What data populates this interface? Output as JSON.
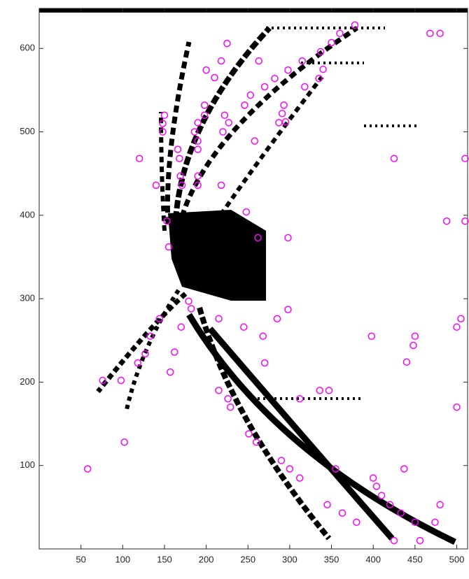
{
  "chart_data": {
    "type": "scatter",
    "marker": "circle-open",
    "color": "#ff00ff",
    "x": [
      58,
      76,
      98,
      102,
      118,
      127,
      133,
      144,
      155,
      157,
      162,
      170,
      179,
      182,
      140,
      120,
      153,
      148,
      148,
      150,
      166,
      168,
      169,
      171,
      186,
      190,
      190,
      190,
      190,
      190,
      198,
      198,
      200,
      210,
      218,
      225,
      218,
      220,
      222,
      227,
      246,
      248,
      253,
      258,
      263,
      262,
      270,
      282,
      287,
      291,
      293,
      295,
      298,
      298,
      315,
      318,
      335,
      340,
      350,
      360,
      378,
      337,
      425,
      468,
      480,
      488,
      510,
      510,
      215,
      245,
      268,
      270,
      285,
      298,
      312,
      336,
      347,
      215,
      226,
      229,
      251,
      260,
      290,
      300,
      312,
      345,
      355,
      363,
      380,
      400,
      404,
      410,
      420,
      425,
      433,
      437,
      440,
      448,
      450,
      398,
      450,
      456,
      474,
      480,
      500,
      505,
      500
    ],
    "values": [
      96,
      202,
      202,
      128,
      223,
      234,
      255,
      276,
      362,
      212,
      236,
      266,
      297,
      288,
      436,
      468,
      393,
      500,
      510,
      520,
      479,
      468,
      447,
      436,
      500,
      511,
      489,
      479,
      447,
      436,
      520,
      532,
      574,
      565,
      585,
      606,
      436,
      500,
      520,
      511,
      532,
      404,
      544,
      489,
      585,
      373,
      554,
      564,
      511,
      522,
      532,
      512,
      373,
      574,
      585,
      554,
      564,
      575,
      607,
      618,
      628,
      596,
      468,
      618,
      618,
      393,
      393,
      468,
      276,
      266,
      255,
      223,
      276,
      287,
      180,
      190,
      190,
      190,
      180,
      170,
      138,
      128,
      106,
      96,
      85,
      53,
      96,
      43,
      32,
      85,
      75,
      64,
      53,
      10,
      43,
      96,
      224,
      244,
      255,
      255,
      32,
      10,
      32,
      53,
      266,
      276,
      170
    ],
    "xlim": [
      0,
      513
    ],
    "ylim": [
      0,
      648
    ],
    "xticks": [
      50,
      100,
      150,
      200,
      250,
      300,
      350,
      400,
      450,
      500
    ],
    "yticks": [
      100,
      200,
      300,
      400,
      500,
      600
    ]
  }
}
